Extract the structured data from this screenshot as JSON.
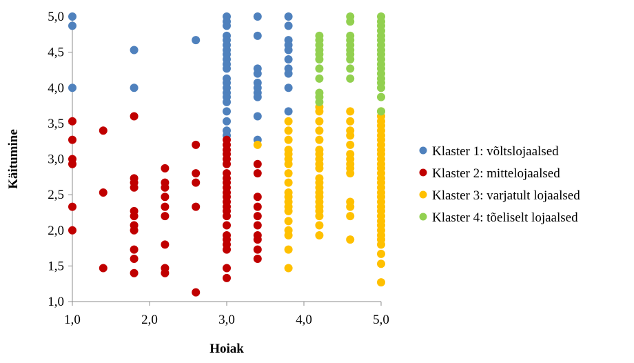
{
  "chart_data": {
    "type": "scatter",
    "title": "",
    "xlabel": "Hoiak",
    "ylabel": "Käitumine",
    "xlim": [
      1.0,
      5.0
    ],
    "ylim": [
      1.0,
      5.0
    ],
    "x_ticks": [
      "1,0",
      "2,0",
      "3,0",
      "4,0",
      "5,0"
    ],
    "y_ticks": [
      "1,0",
      "1,5",
      "2,0",
      "2,5",
      "3,0",
      "3,5",
      "4,0",
      "4,5",
      "5,0"
    ],
    "grid": false,
    "legend_position": "right",
    "series": [
      {
        "name": "Klaster 1: võltslojaalsed",
        "color": "#4f81bd",
        "points": [
          [
            1.0,
            5.0
          ],
          [
            1.0,
            4.87
          ],
          [
            1.0,
            4.0
          ],
          [
            1.8,
            4.53
          ],
          [
            1.8,
            4.0
          ],
          [
            2.6,
            4.67
          ],
          [
            3.0,
            5.0
          ],
          [
            3.0,
            4.93
          ],
          [
            3.0,
            4.87
          ],
          [
            3.0,
            4.73
          ],
          [
            3.0,
            4.67
          ],
          [
            3.0,
            4.6
          ],
          [
            3.0,
            4.53
          ],
          [
            3.0,
            4.47
          ],
          [
            3.0,
            4.4
          ],
          [
            3.0,
            4.33
          ],
          [
            3.0,
            4.27
          ],
          [
            3.0,
            4.13
          ],
          [
            3.0,
            4.07
          ],
          [
            3.0,
            4.0
          ],
          [
            3.0,
            3.93
          ],
          [
            3.0,
            3.87
          ],
          [
            3.0,
            3.8
          ],
          [
            3.0,
            3.67
          ],
          [
            3.0,
            3.53
          ],
          [
            3.0,
            3.4
          ],
          [
            3.0,
            3.33
          ],
          [
            3.4,
            5.0
          ],
          [
            3.4,
            4.73
          ],
          [
            3.4,
            4.27
          ],
          [
            3.4,
            4.2
          ],
          [
            3.4,
            4.07
          ],
          [
            3.4,
            4.0
          ],
          [
            3.4,
            3.93
          ],
          [
            3.4,
            3.87
          ],
          [
            3.4,
            3.6
          ],
          [
            3.4,
            3.27
          ],
          [
            3.8,
            5.0
          ],
          [
            3.8,
            4.87
          ],
          [
            3.8,
            4.67
          ],
          [
            3.8,
            4.6
          ],
          [
            3.8,
            4.53
          ],
          [
            3.8,
            4.4
          ],
          [
            3.8,
            4.27
          ],
          [
            3.8,
            4.2
          ],
          [
            3.8,
            4.0
          ],
          [
            3.8,
            3.67
          ]
        ]
      },
      {
        "name": "Klaster 2: mittelojaalsed",
        "color": "#c00000",
        "points": [
          [
            1.0,
            3.53
          ],
          [
            1.0,
            3.27
          ],
          [
            1.0,
            3.0
          ],
          [
            1.0,
            2.93
          ],
          [
            1.0,
            2.33
          ],
          [
            1.0,
            2.0
          ],
          [
            1.4,
            3.4
          ],
          [
            1.4,
            2.53
          ],
          [
            1.4,
            1.47
          ],
          [
            1.8,
            3.6
          ],
          [
            1.8,
            2.73
          ],
          [
            1.8,
            2.67
          ],
          [
            1.8,
            2.6
          ],
          [
            1.8,
            2.27
          ],
          [
            1.8,
            2.2
          ],
          [
            1.8,
            2.07
          ],
          [
            1.8,
            2.0
          ],
          [
            1.8,
            1.73
          ],
          [
            1.8,
            1.6
          ],
          [
            1.8,
            1.4
          ],
          [
            2.2,
            2.87
          ],
          [
            2.2,
            2.67
          ],
          [
            2.2,
            2.6
          ],
          [
            2.2,
            2.47
          ],
          [
            2.2,
            2.33
          ],
          [
            2.2,
            2.2
          ],
          [
            2.2,
            1.8
          ],
          [
            2.2,
            1.47
          ],
          [
            2.2,
            1.4
          ],
          [
            2.6,
            3.2
          ],
          [
            2.6,
            2.8
          ],
          [
            2.6,
            2.67
          ],
          [
            2.6,
            2.33
          ],
          [
            2.6,
            1.13
          ],
          [
            3.0,
            3.27
          ],
          [
            3.0,
            3.2
          ],
          [
            3.0,
            3.13
          ],
          [
            3.0,
            3.07
          ],
          [
            3.0,
            3.0
          ],
          [
            3.0,
            2.93
          ],
          [
            3.0,
            2.8
          ],
          [
            3.0,
            2.73
          ],
          [
            3.0,
            2.67
          ],
          [
            3.0,
            2.6
          ],
          [
            3.0,
            2.53
          ],
          [
            3.0,
            2.47
          ],
          [
            3.0,
            2.4
          ],
          [
            3.0,
            2.33
          ],
          [
            3.0,
            2.27
          ],
          [
            3.0,
            2.2
          ],
          [
            3.0,
            2.07
          ],
          [
            3.0,
            1.93
          ],
          [
            3.0,
            1.87
          ],
          [
            3.0,
            1.8
          ],
          [
            3.0,
            1.73
          ],
          [
            3.0,
            1.47
          ],
          [
            3.0,
            1.33
          ],
          [
            3.4,
            2.93
          ],
          [
            3.4,
            2.8
          ],
          [
            3.4,
            2.47
          ],
          [
            3.4,
            2.33
          ],
          [
            3.4,
            2.2
          ],
          [
            3.4,
            2.07
          ],
          [
            3.4,
            1.93
          ],
          [
            3.4,
            1.87
          ],
          [
            3.4,
            1.73
          ],
          [
            3.4,
            1.6
          ]
        ]
      },
      {
        "name": "Klaster 3: varjatult lojaalsed",
        "color": "#ffc000",
        "points": [
          [
            3.4,
            3.2
          ],
          [
            3.8,
            3.53
          ],
          [
            3.8,
            3.4
          ],
          [
            3.8,
            3.27
          ],
          [
            3.8,
            3.13
          ],
          [
            3.8,
            3.07
          ],
          [
            3.8,
            3.0
          ],
          [
            3.8,
            2.93
          ],
          [
            3.8,
            2.8
          ],
          [
            3.8,
            2.67
          ],
          [
            3.8,
            2.53
          ],
          [
            3.8,
            2.47
          ],
          [
            3.8,
            2.4
          ],
          [
            3.8,
            2.33
          ],
          [
            3.8,
            2.27
          ],
          [
            3.8,
            2.13
          ],
          [
            3.8,
            2.0
          ],
          [
            3.8,
            1.93
          ],
          [
            3.8,
            1.73
          ],
          [
            3.8,
            1.47
          ],
          [
            4.2,
            3.73
          ],
          [
            4.2,
            3.67
          ],
          [
            4.2,
            3.53
          ],
          [
            4.2,
            3.4
          ],
          [
            4.2,
            3.27
          ],
          [
            4.2,
            3.13
          ],
          [
            4.2,
            3.07
          ],
          [
            4.2,
            3.0
          ],
          [
            4.2,
            2.93
          ],
          [
            4.2,
            2.87
          ],
          [
            4.2,
            2.73
          ],
          [
            4.2,
            2.67
          ],
          [
            4.2,
            2.6
          ],
          [
            4.2,
            2.53
          ],
          [
            4.2,
            2.47
          ],
          [
            4.2,
            2.4
          ],
          [
            4.2,
            2.33
          ],
          [
            4.2,
            2.27
          ],
          [
            4.2,
            2.2
          ],
          [
            4.2,
            2.07
          ],
          [
            4.2,
            1.93
          ],
          [
            4.6,
            3.67
          ],
          [
            4.6,
            3.53
          ],
          [
            4.6,
            3.4
          ],
          [
            4.6,
            3.33
          ],
          [
            4.6,
            3.2
          ],
          [
            4.6,
            3.07
          ],
          [
            4.6,
            3.0
          ],
          [
            4.6,
            2.93
          ],
          [
            4.6,
            2.87
          ],
          [
            4.6,
            2.8
          ],
          [
            4.6,
            2.4
          ],
          [
            4.6,
            2.33
          ],
          [
            4.6,
            2.2
          ],
          [
            4.6,
            1.87
          ],
          [
            5.0,
            3.67
          ],
          [
            5.0,
            3.6
          ],
          [
            5.0,
            3.53
          ],
          [
            5.0,
            3.47
          ],
          [
            5.0,
            3.4
          ],
          [
            5.0,
            3.33
          ],
          [
            5.0,
            3.27
          ],
          [
            5.0,
            3.2
          ],
          [
            5.0,
            3.13
          ],
          [
            5.0,
            3.07
          ],
          [
            5.0,
            3.0
          ],
          [
            5.0,
            2.93
          ],
          [
            5.0,
            2.87
          ],
          [
            5.0,
            2.8
          ],
          [
            5.0,
            2.73
          ],
          [
            5.0,
            2.67
          ],
          [
            5.0,
            2.6
          ],
          [
            5.0,
            2.53
          ],
          [
            5.0,
            2.47
          ],
          [
            5.0,
            2.4
          ],
          [
            5.0,
            2.33
          ],
          [
            5.0,
            2.27
          ],
          [
            5.0,
            2.2
          ],
          [
            5.0,
            2.13
          ],
          [
            5.0,
            2.07
          ],
          [
            5.0,
            2.0
          ],
          [
            5.0,
            1.93
          ],
          [
            5.0,
            1.87
          ],
          [
            5.0,
            1.8
          ],
          [
            5.0,
            1.67
          ],
          [
            5.0,
            1.53
          ],
          [
            5.0,
            1.27
          ]
        ]
      },
      {
        "name": "Klaster 4: tõeliselt lojaalsed",
        "color": "#92d050",
        "points": [
          [
            4.2,
            4.73
          ],
          [
            4.2,
            4.67
          ],
          [
            4.2,
            4.6
          ],
          [
            4.2,
            4.53
          ],
          [
            4.2,
            4.47
          ],
          [
            4.2,
            4.4
          ],
          [
            4.2,
            4.27
          ],
          [
            4.2,
            4.13
          ],
          [
            4.2,
            3.93
          ],
          [
            4.2,
            3.87
          ],
          [
            4.2,
            3.8
          ],
          [
            4.6,
            5.0
          ],
          [
            4.6,
            4.93
          ],
          [
            4.6,
            4.73
          ],
          [
            4.6,
            4.67
          ],
          [
            4.6,
            4.6
          ],
          [
            4.6,
            4.53
          ],
          [
            4.6,
            4.47
          ],
          [
            4.6,
            4.4
          ],
          [
            4.6,
            4.27
          ],
          [
            4.6,
            4.13
          ],
          [
            5.0,
            5.0
          ],
          [
            5.0,
            4.93
          ],
          [
            5.0,
            4.87
          ],
          [
            5.0,
            4.8
          ],
          [
            5.0,
            4.73
          ],
          [
            5.0,
            4.67
          ],
          [
            5.0,
            4.6
          ],
          [
            5.0,
            4.53
          ],
          [
            5.0,
            4.47
          ],
          [
            5.0,
            4.4
          ],
          [
            5.0,
            4.33
          ],
          [
            5.0,
            4.27
          ],
          [
            5.0,
            4.2
          ],
          [
            5.0,
            4.13
          ],
          [
            5.0,
            4.07
          ],
          [
            5.0,
            4.0
          ],
          [
            5.0,
            3.87
          ],
          [
            5.0,
            3.67
          ]
        ]
      }
    ]
  }
}
